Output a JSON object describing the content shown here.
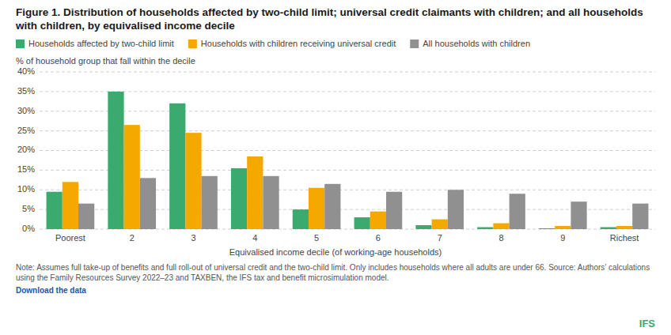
{
  "chart_data": {
    "type": "bar",
    "title": "Figure 1. Distribution of households affected by two-child limit; universal credit claimants with children; and all households with children, by equivalised income decile",
    "xlabel": "Equivalised income decile (of working-age households)",
    "ylabel": "% of household group that fall within the decile",
    "categories": [
      "Poorest",
      "2",
      "3",
      "4",
      "5",
      "6",
      "7",
      "8",
      "9",
      "Richest"
    ],
    "series": [
      {
        "name": "Households affected by two-child limit",
        "color": "#3aaa6e",
        "values": [
          9.5,
          35,
          32,
          15.5,
          5,
          3,
          1,
          0.5,
          0.2,
          0.5
        ]
      },
      {
        "name": "Households with children receiving universal credit",
        "color": "#f5a800",
        "values": [
          12,
          26.5,
          24.5,
          18.5,
          10.5,
          4.5,
          2.5,
          1.5,
          0.8,
          0.8
        ]
      },
      {
        "name": "All households with children",
        "color": "#909090",
        "values": [
          6.5,
          13,
          13.5,
          13.5,
          11.5,
          9.5,
          10,
          9,
          7,
          6.5
        ]
      }
    ],
    "ylim": [
      0,
      40
    ],
    "yticks": [
      {
        "value": 0,
        "label": "0%"
      },
      {
        "value": 5,
        "label": "5%"
      },
      {
        "value": 10,
        "label": "10%"
      },
      {
        "value": 15,
        "label": "15%"
      },
      {
        "value": 20,
        "label": "20%"
      },
      {
        "value": 25,
        "label": "25%"
      },
      {
        "value": 30,
        "label": "30%"
      },
      {
        "value": 35,
        "label": "35%"
      },
      {
        "value": 40,
        "label": "40%"
      }
    ],
    "grid": true,
    "legend": "top-left",
    "annotations": [
      "Note: Assumes full take-up of benefits and full roll-out of universal credit and the two-child limit. Only includes households where all adults are under 66. Source: Authors’ calculations using the Family Resources Survey 2022–23 and TAXBEN, the IFS tax and benefit microsimulation model.",
      "Download the data",
      "IFS"
    ]
  }
}
